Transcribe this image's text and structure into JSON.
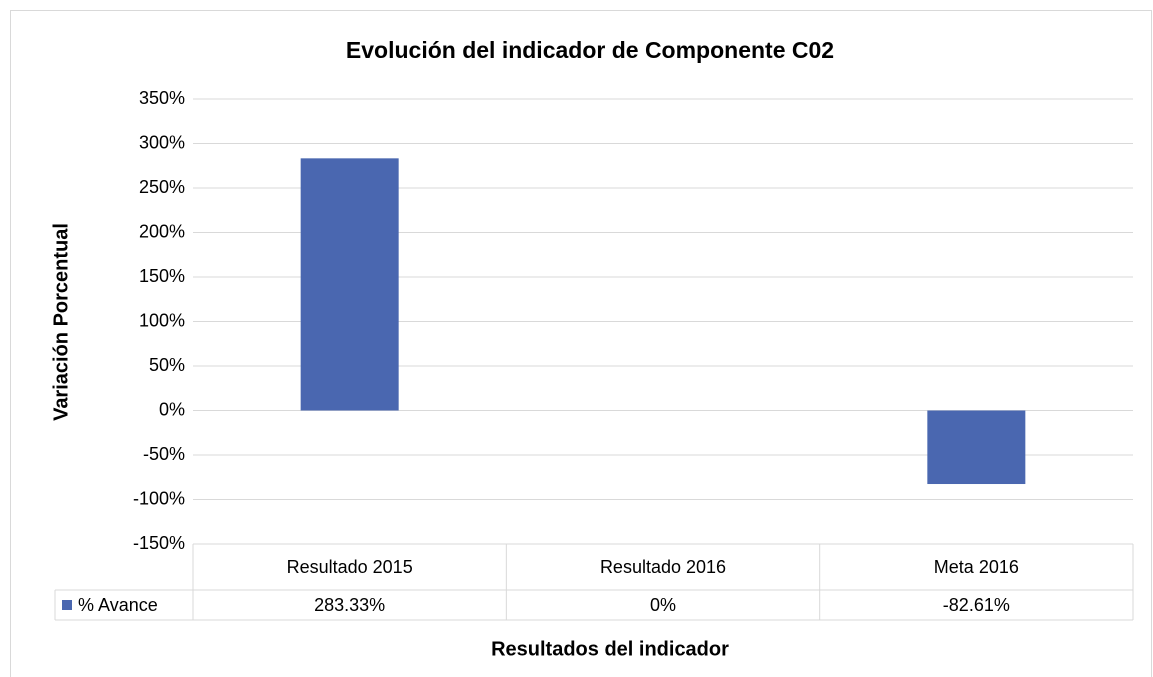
{
  "chart_data": {
    "type": "bar",
    "title": "Evolución del indicador de Componente C02",
    "y_axis_label": "Variación Porcentual",
    "x_axis_label": "Resultados del indicador",
    "categories": [
      "Resultado 2015",
      "Resultado 2016",
      "Meta 2016"
    ],
    "series": [
      {
        "name": "% Avance",
        "color": "#4a67b0",
        "values": [
          283.33,
          0,
          -82.61
        ],
        "value_labels": [
          "283.33%",
          "0%",
          "-82.61%"
        ]
      }
    ],
    "ylim": [
      -150,
      350
    ],
    "yticks": [
      {
        "value": -150,
        "label": "-150%"
      },
      {
        "value": -100,
        "label": "-100%"
      },
      {
        "value": -50,
        "label": "-50%"
      },
      {
        "value": 0,
        "label": "0%"
      },
      {
        "value": 50,
        "label": "50%"
      },
      {
        "value": 100,
        "label": "100%"
      },
      {
        "value": 150,
        "label": "150%"
      },
      {
        "value": 200,
        "label": "200%"
      },
      {
        "value": 250,
        "label": "250%"
      },
      {
        "value": 300,
        "label": "300%"
      },
      {
        "value": 350,
        "label": "350%"
      }
    ],
    "grid": true
  }
}
